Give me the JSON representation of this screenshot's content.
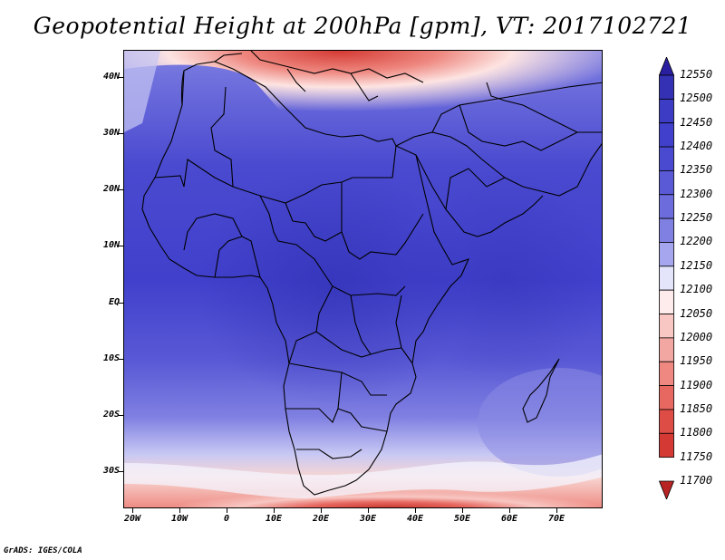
{
  "title": "Geopotential Height at 200hPa [gpm], VT: 2017102721",
  "credit": "GrADS: IGES/COLA",
  "map": {
    "region": "Africa and Middle East",
    "lon_range": [
      -22,
      80
    ],
    "lat_range": [
      -37,
      45
    ],
    "lat_labels": [
      "40N",
      "30N",
      "20N",
      "10N",
      "EQ",
      "10S",
      "20S",
      "30S"
    ],
    "lon_labels": [
      "20W",
      "10W",
      "0",
      "10E",
      "20E",
      "30E",
      "40E",
      "50E",
      "60E",
      "70E"
    ]
  },
  "colorbar": {
    "levels": [
      "12550",
      "12500",
      "12450",
      "12400",
      "12350",
      "12300",
      "12250",
      "12200",
      "12150",
      "12100",
      "12050",
      "12000",
      "11950",
      "11900",
      "11850",
      "11800",
      "11750",
      "11700"
    ],
    "colors": [
      "#2a1fa0",
      "#3431b4",
      "#3c3cc4",
      "#4040cc",
      "#4a4ad0",
      "#5a5ad6",
      "#6c6cdc",
      "#8080e2",
      "#a6a6ee",
      "#e4e4fa",
      "#fdeceb",
      "#f8c7c3",
      "#f3a7a2",
      "#ee8880",
      "#e66860",
      "#de4d45",
      "#d43a33",
      "#b82424"
    ]
  }
}
